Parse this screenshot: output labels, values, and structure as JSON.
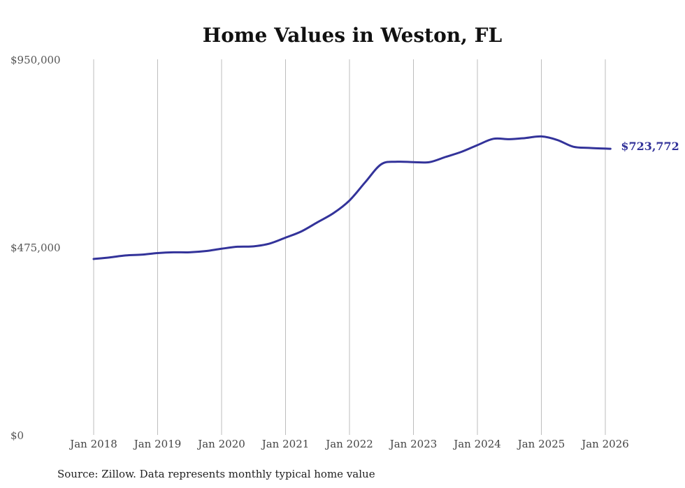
{
  "chart_data": {
    "type": "line",
    "title": "Home Values in Weston, FL",
    "xlabel": "",
    "ylabel": "",
    "ylim": [
      0,
      950000
    ],
    "yticks": [
      {
        "value": 0,
        "label": "$0"
      },
      {
        "value": 475000,
        "label": "$475,000"
      },
      {
        "value": 950000,
        "label": "$950,000"
      }
    ],
    "xticks": [
      {
        "value": 2018.0,
        "label": "Jan 2018"
      },
      {
        "value": 2019.0,
        "label": "Jan 2019"
      },
      {
        "value": 2020.0,
        "label": "Jan 2020"
      },
      {
        "value": 2021.0,
        "label": "Jan 2021"
      },
      {
        "value": 2022.0,
        "label": "Jan 2022"
      },
      {
        "value": 2023.0,
        "label": "Jan 2023"
      },
      {
        "value": 2024.0,
        "label": "Jan 2024"
      },
      {
        "value": 2025.0,
        "label": "Jan 2025"
      },
      {
        "value": 2026.0,
        "label": "Jan 2026"
      }
    ],
    "grid": "vertical",
    "series": [
      {
        "name": "Weston, FL",
        "color": "#33339a",
        "end_label": "$723,772",
        "points": [
          {
            "x": 2018.0,
            "y": 445000
          },
          {
            "x": 2018.25,
            "y": 449000
          },
          {
            "x": 2018.5,
            "y": 454000
          },
          {
            "x": 2018.75,
            "y": 456000
          },
          {
            "x": 2019.0,
            "y": 460000
          },
          {
            "x": 2019.25,
            "y": 462000
          },
          {
            "x": 2019.5,
            "y": 462000
          },
          {
            "x": 2019.75,
            "y": 465000
          },
          {
            "x": 2020.0,
            "y": 471000
          },
          {
            "x": 2020.25,
            "y": 476000
          },
          {
            "x": 2020.5,
            "y": 477000
          },
          {
            "x": 2020.75,
            "y": 484000
          },
          {
            "x": 2021.0,
            "y": 499000
          },
          {
            "x": 2021.25,
            "y": 515000
          },
          {
            "x": 2021.5,
            "y": 538000
          },
          {
            "x": 2021.75,
            "y": 561000
          },
          {
            "x": 2022.0,
            "y": 593000
          },
          {
            "x": 2022.25,
            "y": 640000
          },
          {
            "x": 2022.5,
            "y": 685000
          },
          {
            "x": 2022.75,
            "y": 691000
          },
          {
            "x": 2023.0,
            "y": 690000
          },
          {
            "x": 2023.25,
            "y": 690000
          },
          {
            "x": 2023.5,
            "y": 703000
          },
          {
            "x": 2023.75,
            "y": 716000
          },
          {
            "x": 2024.0,
            "y": 733000
          },
          {
            "x": 2024.25,
            "y": 749000
          },
          {
            "x": 2024.5,
            "y": 748000
          },
          {
            "x": 2024.75,
            "y": 751000
          },
          {
            "x": 2025.0,
            "y": 755000
          },
          {
            "x": 2025.25,
            "y": 746000
          },
          {
            "x": 2025.5,
            "y": 729000
          },
          {
            "x": 2025.75,
            "y": 726000
          },
          {
            "x": 2026.08,
            "y": 723772
          }
        ]
      }
    ]
  },
  "source": "Source: Zillow. Data represents monthly typical home value"
}
